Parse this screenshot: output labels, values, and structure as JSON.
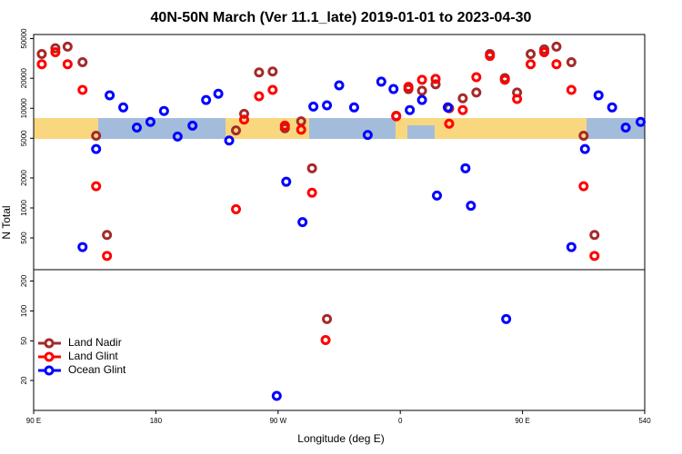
{
  "chart_data": [
    {
      "type": "scatter",
      "title": "40N-50N March (Ver 11.1_late)   2019-01-01 to 2023-04-30",
      "y_label": "N Total",
      "log_y": true,
      "xlim": [
        90,
        540
      ],
      "ylim": [
        240,
        55000
      ],
      "yticks": [
        500,
        1000,
        2000,
        5000,
        10000,
        20000,
        50000
      ],
      "series": [
        {
          "color": "#a52a2a",
          "x": [
            96,
            106,
            115,
            126,
            136,
            144,
            239,
            245,
            256,
            266,
            275,
            287,
            295,
            357,
            366,
            376,
            386,
            396,
            406,
            416,
            426,
            437,
            446,
            456,
            466,
            475,
            486,
            495,
            503
          ],
          "values": [
            35000,
            40000,
            41500,
            29000,
            5300,
            535,
            6000,
            8800,
            22900,
            23400,
            6300,
            7400,
            2500,
            8400,
            15600,
            15000,
            17400,
            10000,
            12600,
            14400,
            35000,
            20100,
            14400,
            35000,
            39000,
            41500,
            29000,
            5300,
            535
          ]
        },
        {
          "color": "#ff0000",
          "x": [
            96,
            106,
            115,
            126,
            136,
            144,
            239,
            245,
            256,
            266,
            275,
            287,
            295,
            357,
            366,
            376,
            386,
            396,
            406,
            416,
            426,
            437,
            446,
            456,
            466,
            475,
            486,
            495,
            503
          ],
          "values": [
            27700,
            36500,
            27700,
            15300,
            1650,
            330,
            970,
            7700,
            13200,
            15300,
            6700,
            6100,
            1420,
            8300,
            16400,
            19300,
            19700,
            7000,
            9600,
            20500,
            33500,
            19300,
            12400,
            27700,
            36500,
            27700,
            15300,
            1650,
            330
          ]
        },
        {
          "color": "#0000ff",
          "x": [
            126,
            136,
            146,
            156,
            166,
            176,
            186,
            196,
            207,
            217,
            226,
            234,
            276,
            288,
            296,
            306,
            315,
            326,
            336,
            346,
            355,
            367,
            376,
            387,
            395,
            408,
            412,
            486,
            496,
            506,
            516,
            526,
            537
          ],
          "values": [
            405,
            3900,
            13500,
            10200,
            6400,
            7300,
            9400,
            5200,
            6700,
            12100,
            14000,
            4750,
            1830,
            720,
            10400,
            10700,
            17000,
            10200,
            5400,
            18500,
            15600,
            9600,
            12100,
            1330,
            10200,
            2500,
            1050,
            405,
            3900,
            13500,
            10200,
            6400,
            7300
          ]
        }
      ]
    },
    {
      "type": "scatter",
      "x_label": "Longitude (deg E)",
      "log_y": true,
      "xlim": [
        90,
        540
      ],
      "ylim": [
        10,
        260
      ],
      "yticks": [
        20,
        50,
        100,
        200
      ],
      "xticks": [
        {
          "value": 90,
          "label": "90 E"
        },
        180,
        {
          "value": 270,
          "label": "90 W"
        },
        {
          "value": 360,
          "label": "0"
        },
        {
          "value": 450,
          "label": "90 E"
        },
        540
      ],
      "legend": "lower left",
      "series": [
        {
          "name": "Land Nadir",
          "color": "#a52a2a",
          "x": [
            306
          ],
          "values": [
            83
          ]
        },
        {
          "name": "Land Glint",
          "color": "#ff0000",
          "x": [
            305
          ],
          "values": [
            51
          ]
        },
        {
          "name": "Ocean Glint",
          "color": "#0000ff",
          "x": [
            269,
            438
          ],
          "values": [
            14,
            83
          ]
        }
      ]
    }
  ]
}
